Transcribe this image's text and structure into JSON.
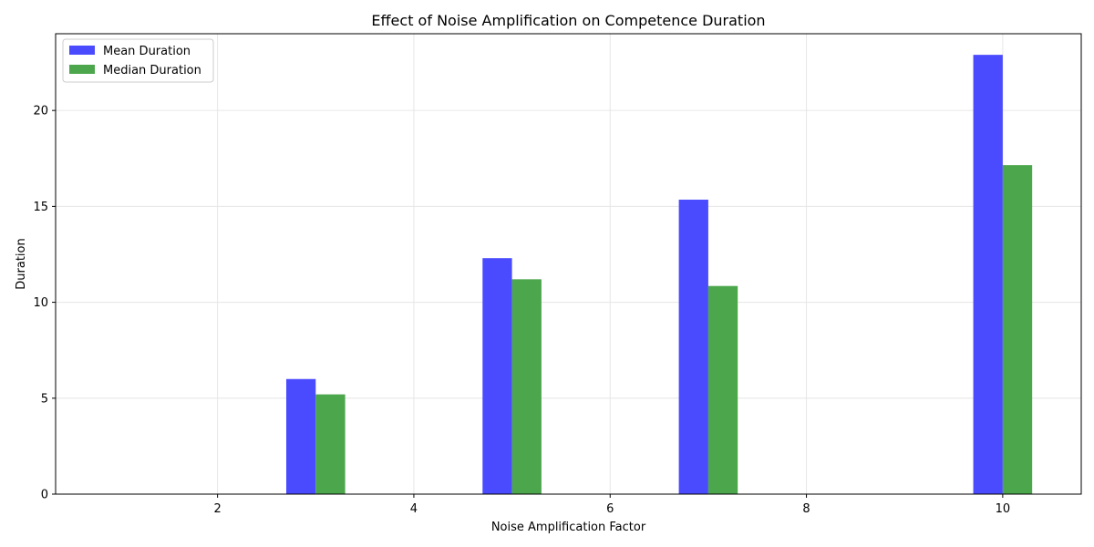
{
  "chart_data": {
    "type": "bar",
    "title": "Effect of Noise Amplification on Competence Duration",
    "xlabel": "Noise Amplification Factor",
    "ylabel": "Duration",
    "x": [
      3,
      5,
      7,
      10
    ],
    "series": [
      {
        "name": "Mean Duration",
        "values": [
          6.0,
          12.3,
          15.35,
          22.9
        ],
        "color": "#4a4aff"
      },
      {
        "name": "Median Duration",
        "values": [
          5.2,
          11.2,
          10.85,
          17.15
        ],
        "color": "#4ca64c"
      }
    ],
    "bar_width": 0.3,
    "xlim": [
      0.35,
      10.8
    ],
    "ylim": [
      0,
      24
    ],
    "xticks": [
      2,
      4,
      6,
      8,
      10
    ],
    "yticks": [
      0,
      5,
      10,
      15,
      20
    ],
    "grid": true,
    "legend_position": "top-left"
  }
}
